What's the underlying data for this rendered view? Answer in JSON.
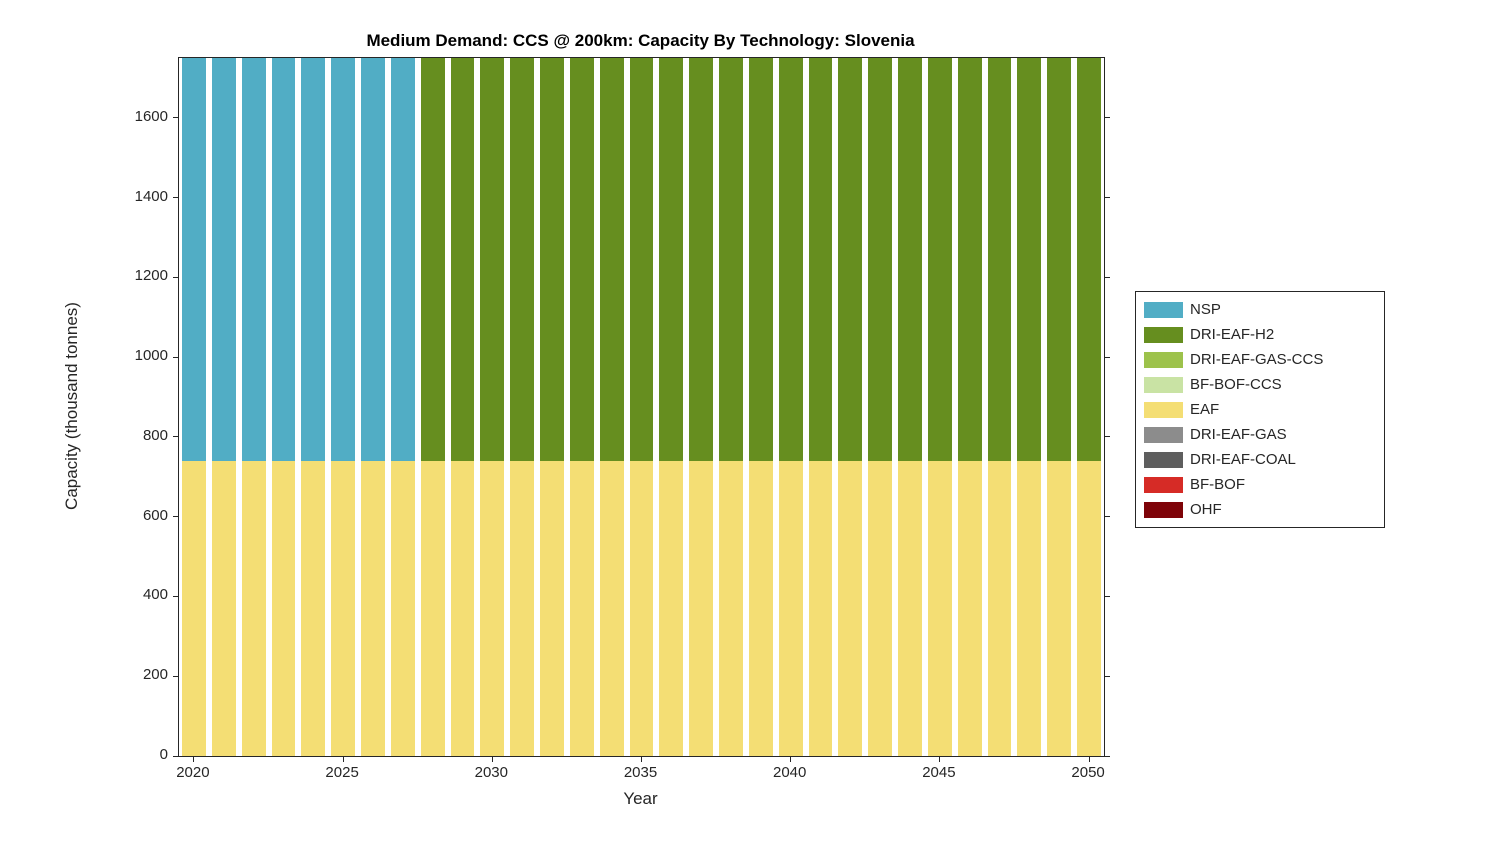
{
  "figure": {
    "title": "Medium Demand: CCS @ 200km: Capacity By Technology: Slovenia",
    "xlabel": "Year",
    "ylabel": "Capacity (thousand tonnes)"
  },
  "chart_data": {
    "type": "bar",
    "stacked": true,
    "title": "Medium Demand: CCS @ 200km: Capacity By Technology: Slovenia",
    "xlabel": "Year",
    "ylabel": "Capacity (thousand tonnes)",
    "ylim": [
      0,
      1750
    ],
    "yticks": [
      0,
      200,
      400,
      600,
      800,
      1000,
      1200,
      1400,
      1600
    ],
    "xticks": [
      2020,
      2025,
      2030,
      2035,
      2040,
      2045,
      2050
    ],
    "grid": false,
    "legend_position": "right-outside",
    "note": "Bar totals are clipped at the top of the axes (~1750)",
    "categories": [
      2020,
      2021,
      2022,
      2023,
      2024,
      2025,
      2026,
      2027,
      2028,
      2029,
      2030,
      2031,
      2032,
      2033,
      2034,
      2035,
      2036,
      2037,
      2038,
      2039,
      2040,
      2041,
      2042,
      2043,
      2044,
      2045,
      2046,
      2047,
      2048,
      2049,
      2050
    ],
    "series": [
      {
        "name": "NSP",
        "color": "#51ADC5",
        "values": [
          1010,
          1010,
          1010,
          1010,
          1010,
          1010,
          1010,
          1010,
          0,
          0,
          0,
          0,
          0,
          0,
          0,
          0,
          0,
          0,
          0,
          0,
          0,
          0,
          0,
          0,
          0,
          0,
          0,
          0,
          0,
          0,
          0
        ]
      },
      {
        "name": "DRI-EAF-H2",
        "color": "#668E1F",
        "values": [
          0,
          0,
          0,
          0,
          0,
          0,
          0,
          0,
          1010,
          1010,
          1010,
          1010,
          1010,
          1010,
          1010,
          1010,
          1010,
          1010,
          1010,
          1010,
          1010,
          1010,
          1010,
          1010,
          1010,
          1010,
          1010,
          1010,
          1010,
          1010,
          1010
        ]
      },
      {
        "name": "DRI-EAF-GAS-CCS",
        "color": "#9DC24B",
        "values": [
          0,
          0,
          0,
          0,
          0,
          0,
          0,
          0,
          0,
          0,
          0,
          0,
          0,
          0,
          0,
          0,
          0,
          0,
          0,
          0,
          0,
          0,
          0,
          0,
          0,
          0,
          0,
          0,
          0,
          0,
          0
        ]
      },
      {
        "name": "BF-BOF-CCS",
        "color": "#C9E3A4",
        "values": [
          0,
          0,
          0,
          0,
          0,
          0,
          0,
          0,
          0,
          0,
          0,
          0,
          0,
          0,
          0,
          0,
          0,
          0,
          0,
          0,
          0,
          0,
          0,
          0,
          0,
          0,
          0,
          0,
          0,
          0,
          0
        ]
      },
      {
        "name": "EAF",
        "color": "#F4DE74",
        "values": [
          740,
          740,
          740,
          740,
          740,
          740,
          740,
          740,
          740,
          740,
          740,
          740,
          740,
          740,
          740,
          740,
          740,
          740,
          740,
          740,
          740,
          740,
          740,
          740,
          740,
          740,
          740,
          740,
          740,
          740,
          740
        ]
      },
      {
        "name": "DRI-EAF-GAS",
        "color": "#8C8C8C",
        "values": [
          0,
          0,
          0,
          0,
          0,
          0,
          0,
          0,
          0,
          0,
          0,
          0,
          0,
          0,
          0,
          0,
          0,
          0,
          0,
          0,
          0,
          0,
          0,
          0,
          0,
          0,
          0,
          0,
          0,
          0,
          0
        ]
      },
      {
        "name": "DRI-EAF-COAL",
        "color": "#5E5E5E",
        "values": [
          0,
          0,
          0,
          0,
          0,
          0,
          0,
          0,
          0,
          0,
          0,
          0,
          0,
          0,
          0,
          0,
          0,
          0,
          0,
          0,
          0,
          0,
          0,
          0,
          0,
          0,
          0,
          0,
          0,
          0,
          0
        ]
      },
      {
        "name": "BF-BOF",
        "color": "#D62B26",
        "values": [
          0,
          0,
          0,
          0,
          0,
          0,
          0,
          0,
          0,
          0,
          0,
          0,
          0,
          0,
          0,
          0,
          0,
          0,
          0,
          0,
          0,
          0,
          0,
          0,
          0,
          0,
          0,
          0,
          0,
          0,
          0
        ]
      },
      {
        "name": "OHF",
        "color": "#7E0308",
        "values": [
          0,
          0,
          0,
          0,
          0,
          0,
          0,
          0,
          0,
          0,
          0,
          0,
          0,
          0,
          0,
          0,
          0,
          0,
          0,
          0,
          0,
          0,
          0,
          0,
          0,
          0,
          0,
          0,
          0,
          0,
          0
        ]
      }
    ]
  }
}
